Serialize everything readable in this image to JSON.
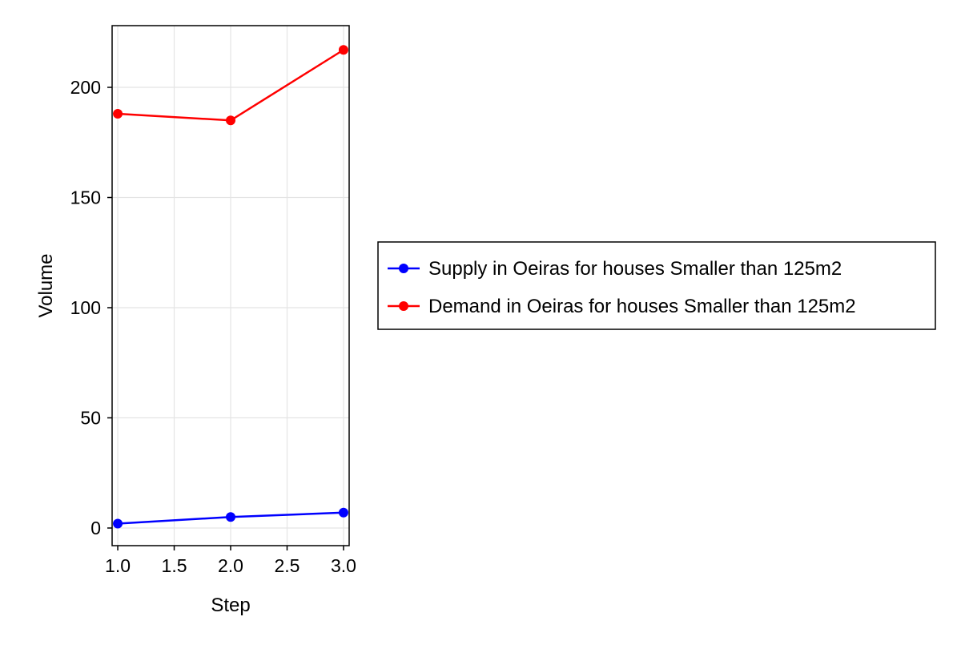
{
  "chart_data": {
    "type": "line",
    "title": "",
    "xlabel": "Step",
    "ylabel": "Volume",
    "xlim": [
      0.95,
      3.05
    ],
    "ylim": [
      -8,
      228
    ],
    "xticks": [
      1.0,
      1.5,
      2.0,
      2.5,
      3.0
    ],
    "xtick_labels": [
      "1.0",
      "1.5",
      "2.0",
      "2.5",
      "3.0"
    ],
    "yticks": [
      0,
      50,
      100,
      150,
      200
    ],
    "ytick_labels": [
      "0",
      "50",
      "100",
      "150",
      "200"
    ],
    "grid": true,
    "legend_position": "right",
    "series": [
      {
        "name": "Supply in Oeiras for houses Smaller than 125m2",
        "color": "#0000ff",
        "marker": "circle",
        "x": [
          1,
          2,
          3
        ],
        "y": [
          2,
          5,
          7
        ]
      },
      {
        "name": "Demand in Oeiras for houses Smaller than 125m2",
        "color": "#ff0000",
        "marker": "circle",
        "x": [
          1,
          2,
          3
        ],
        "y": [
          188,
          185,
          217
        ]
      }
    ]
  }
}
